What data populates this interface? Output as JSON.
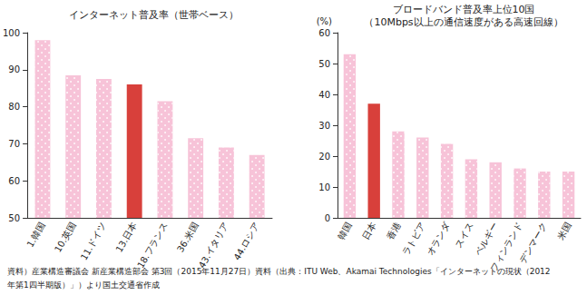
{
  "chart_data": [
    {
      "type": "bar",
      "title": "インターネット普及率（世帯ベース）",
      "categories": [
        "1.韓国",
        "10.英国",
        "11.ドイツ",
        "13.日本",
        "18.フランス",
        "36.米国",
        "43.イタリア",
        "44.ロシア"
      ],
      "values": [
        98,
        88.5,
        87.5,
        86,
        81.5,
        71.5,
        69,
        67
      ],
      "color": "#f7c3d8",
      "colors": [
        "#f7c3d8",
        "#f7c3d8",
        "#f7c3d8",
        "#d8403b",
        "#f7c3d8",
        "#f7c3d8",
        "#f7c3d8",
        "#f7c3d8"
      ],
      "ylim": [
        50,
        100
      ],
      "yticks": [
        50,
        60,
        70,
        80,
        90,
        100
      ],
      "grid": false
    },
    {
      "type": "bar",
      "title": "ブロードバンド普及率上位10国",
      "subtitle": "（10Mbps以上の通信速度がある高速回線）",
      "ylabel": "(%)",
      "categories": [
        "韓国",
        "日本",
        "香港",
        "ラトビア",
        "オランダ",
        "スイス",
        "ベルギー",
        "フィンランド",
        "デンマーク",
        "米国"
      ],
      "values": [
        53,
        37,
        28,
        26,
        24,
        19,
        18,
        16,
        15,
        15
      ],
      "color": "#f7c3d8",
      "colors": [
        "#f7c3d8",
        "#d8403b",
        "#f7c3d8",
        "#f7c3d8",
        "#f7c3d8",
        "#f7c3d8",
        "#f7c3d8",
        "#f7c3d8",
        "#f7c3d8",
        "#f7c3d8"
      ],
      "ylim": [
        0,
        60
      ],
      "yticks": [
        0,
        10,
        20,
        30,
        40,
        50,
        60
      ],
      "grid": false
    }
  ],
  "source": [
    "資料）産業構造審議会 新産業構造部会 第3回（2015年11月27日）資料（出典：ITU Web、Akamai Technologies「インターネットの現状（2012",
    "年第1四半期版）」）より国土交通省作成"
  ]
}
